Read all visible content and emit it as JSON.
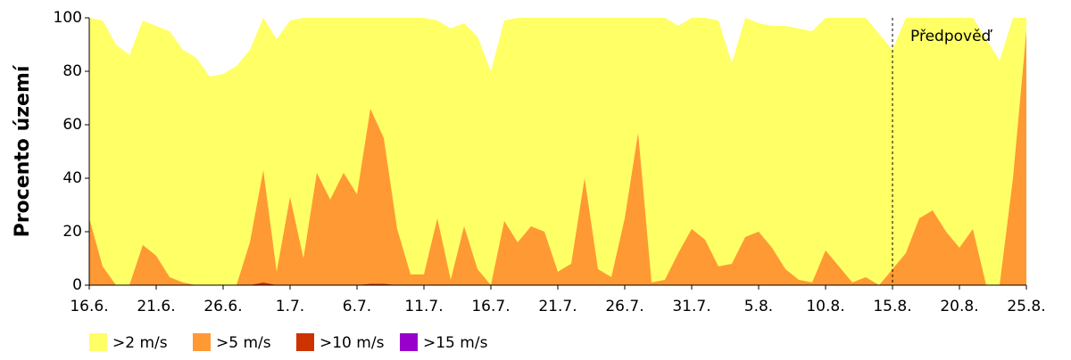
{
  "chart_data": {
    "type": "area",
    "y_label": "Procento území",
    "categories": [
      "16.6.",
      null,
      null,
      null,
      null,
      "21.6.",
      null,
      null,
      null,
      null,
      "26.6.",
      null,
      null,
      null,
      null,
      "1.7.",
      null,
      null,
      null,
      null,
      "6.7.",
      null,
      null,
      null,
      null,
      "11.7.",
      null,
      null,
      null,
      null,
      "16.7.",
      null,
      null,
      null,
      null,
      "21.7.",
      null,
      null,
      null,
      null,
      "26.7.",
      null,
      null,
      null,
      null,
      "31.7.",
      null,
      null,
      null,
      null,
      "5.8.",
      null,
      null,
      null,
      null,
      "10.8.",
      null,
      null,
      null,
      null,
      "15.8.",
      null,
      null,
      null,
      null,
      "20.8.",
      null,
      null,
      null,
      null,
      "25.8."
    ],
    "series": [
      {
        "name": ">2 m/s",
        "color": "#ffff66",
        "values": [
          100,
          99,
          90,
          86,
          99,
          97,
          95,
          88,
          85,
          78,
          79,
          82,
          88,
          100,
          92,
          99,
          100,
          100,
          100,
          100,
          100,
          100,
          100,
          100,
          100,
          100,
          99,
          96,
          98,
          93,
          80,
          99,
          100,
          100,
          100,
          100,
          100,
          100,
          100,
          100,
          100,
          100,
          100,
          100,
          97,
          100,
          100,
          99,
          83,
          100,
          98,
          97,
          97,
          96,
          95,
          100,
          100,
          100,
          100,
          94,
          88,
          100,
          100,
          100,
          100,
          100,
          100,
          92,
          84,
          100,
          100
        ]
      },
      {
        "name": ">5 m/s",
        "color": "#ff9933",
        "values": [
          25,
          7,
          0,
          0,
          15,
          11,
          3,
          1,
          0,
          0,
          0,
          0,
          16,
          43,
          5,
          33,
          10,
          42,
          32,
          42,
          34,
          66,
          55,
          21,
          4,
          4,
          25,
          2,
          22,
          6,
          0,
          24,
          16,
          22,
          20,
          5,
          8,
          40,
          6,
          3,
          25,
          57,
          1,
          2,
          12,
          21,
          17,
          7,
          8,
          18,
          20,
          14,
          6,
          2,
          1,
          13,
          7,
          1,
          3,
          0,
          6,
          12,
          25,
          28,
          20,
          14,
          21,
          0,
          0,
          40,
          95
        ]
      },
      {
        "name": ">10 m/s",
        "color": "#cc3300",
        "values": [
          0,
          0,
          0,
          0,
          0,
          0,
          0,
          0,
          0,
          0,
          0,
          0,
          0,
          1,
          0,
          0,
          0,
          0,
          0,
          0,
          0,
          0.5,
          0.5,
          0,
          0,
          0,
          0,
          0,
          0,
          0,
          0,
          0,
          0,
          0,
          0,
          0,
          0,
          0,
          0,
          0,
          0,
          0,
          0,
          0,
          0,
          0,
          0,
          0,
          0,
          0,
          0,
          0,
          0,
          0,
          0,
          0,
          0,
          0,
          0,
          0,
          0,
          0,
          0,
          0,
          0,
          0,
          0,
          0,
          0,
          0,
          0
        ]
      },
      {
        "name": ">15 m/s",
        "color": "#9900cc",
        "values": [
          0,
          0,
          0,
          0,
          0,
          0,
          0,
          0,
          0,
          0,
          0,
          0,
          0,
          0,
          0,
          0,
          0,
          0,
          0,
          0,
          0,
          0,
          0,
          0,
          0,
          0,
          0,
          0,
          0,
          0,
          0,
          0,
          0,
          0,
          0,
          0,
          0,
          0,
          0,
          0,
          0,
          0,
          0,
          0,
          0,
          0,
          0,
          0,
          0,
          0,
          0,
          0,
          0,
          0,
          0,
          0,
          0,
          0,
          0,
          0,
          0,
          0,
          0,
          0,
          0,
          0,
          0,
          0,
          0,
          0,
          0
        ]
      }
    ],
    "ylim": [
      0,
      100
    ],
    "yticks": [
      0,
      20,
      40,
      60,
      80,
      100
    ],
    "annotation": {
      "text": "Předpověď",
      "x": "15.8."
    }
  }
}
